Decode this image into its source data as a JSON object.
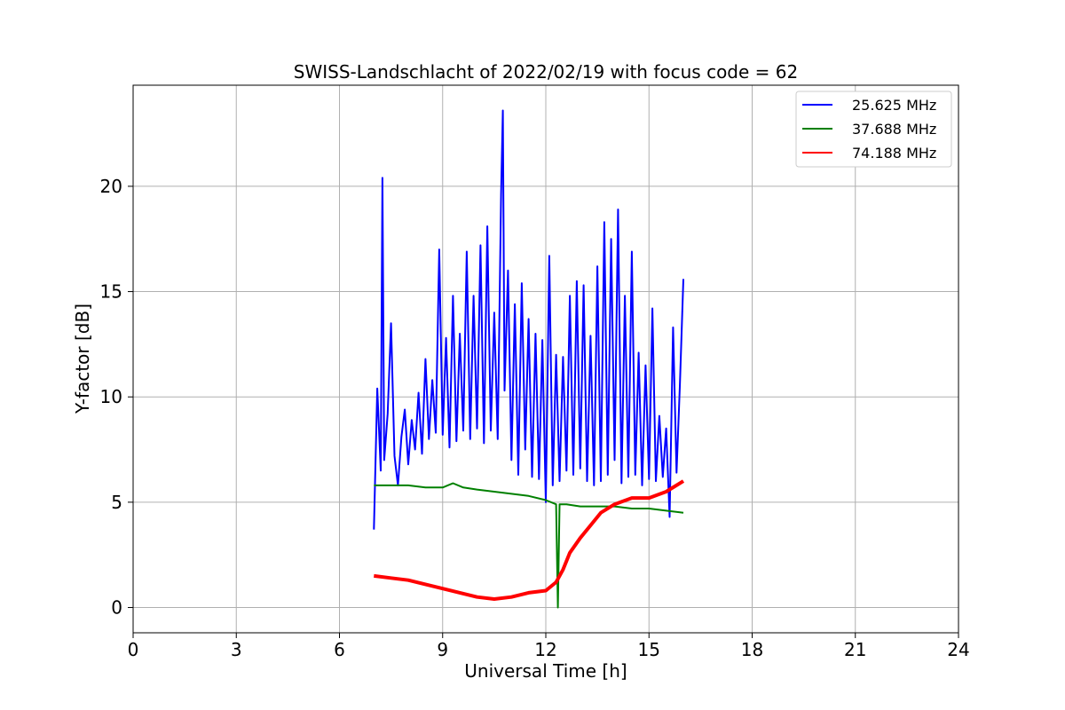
{
  "chart_data": {
    "type": "line",
    "title": "SWISS-Landschlacht of 2022/02/19 with focus code = 62",
    "xlabel": "Universal Time [h]",
    "ylabel": "Y-factor [dB]",
    "xlim": [
      0,
      24
    ],
    "ylim": [
      -1.2,
      24.8
    ],
    "xticks": [
      "0",
      "3",
      "6",
      "9",
      "12",
      "15",
      "18",
      "21",
      "24"
    ],
    "yticks": [
      "0",
      "5",
      "10",
      "15",
      "20"
    ],
    "grid": true,
    "legend_position": "top-right",
    "series": [
      {
        "name": "25.625 MHz",
        "color": "#0000ff",
        "x": [
          7.0,
          7.1,
          7.2,
          7.25,
          7.3,
          7.4,
          7.5,
          7.6,
          7.7,
          7.8,
          7.9,
          8.0,
          8.1,
          8.2,
          8.3,
          8.4,
          8.5,
          8.6,
          8.7,
          8.8,
          8.9,
          9.0,
          9.1,
          9.2,
          9.3,
          9.4,
          9.5,
          9.6,
          9.7,
          9.8,
          9.9,
          10.0,
          10.1,
          10.2,
          10.3,
          10.4,
          10.5,
          10.6,
          10.7,
          10.75,
          10.8,
          10.9,
          11.0,
          11.1,
          11.2,
          11.3,
          11.4,
          11.5,
          11.6,
          11.7,
          11.8,
          11.9,
          12.0,
          12.1,
          12.2,
          12.3,
          12.4,
          12.5,
          12.6,
          12.7,
          12.8,
          12.9,
          13.0,
          13.1,
          13.2,
          13.3,
          13.4,
          13.5,
          13.6,
          13.7,
          13.8,
          13.9,
          14.0,
          14.1,
          14.2,
          14.3,
          14.4,
          14.5,
          14.6,
          14.7,
          14.8,
          14.9,
          15.0,
          15.1,
          15.2,
          15.3,
          15.4,
          15.5,
          15.6,
          15.7,
          15.8,
          15.9,
          16.0
        ],
        "y": [
          3.7,
          10.4,
          6.5,
          20.4,
          7.0,
          9.2,
          13.5,
          7.2,
          5.8,
          8.1,
          9.4,
          6.8,
          8.9,
          7.5,
          10.2,
          7.3,
          11.8,
          8.0,
          10.8,
          8.3,
          17.0,
          8.2,
          12.8,
          7.6,
          14.8,
          7.9,
          13.0,
          8.4,
          16.9,
          8.0,
          14.8,
          8.5,
          17.2,
          7.8,
          18.1,
          8.4,
          14.0,
          8.0,
          19.6,
          23.6,
          10.3,
          16.0,
          7.0,
          14.4,
          6.3,
          15.4,
          7.5,
          13.7,
          6.2,
          13.0,
          6.1,
          12.7,
          5.0,
          16.7,
          5.8,
          12.0,
          6.0,
          11.9,
          6.5,
          14.8,
          6.3,
          15.5,
          6.6,
          15.3,
          6.0,
          12.9,
          5.8,
          16.2,
          6.0,
          18.3,
          6.3,
          17.5,
          7.0,
          18.9,
          5.9,
          14.8,
          6.2,
          16.9,
          6.3,
          12.1,
          5.8,
          11.5,
          6.1,
          14.2,
          6.0,
          9.1,
          6.2,
          8.5,
          4.3,
          13.3,
          6.4,
          10.6,
          15.6
        ]
      },
      {
        "name": "37.688 MHz",
        "color": "#008000",
        "x": [
          7.0,
          7.5,
          8.0,
          8.5,
          9.0,
          9.3,
          9.6,
          10.0,
          10.5,
          11.0,
          11.5,
          12.0,
          12.3,
          12.35,
          12.4,
          12.6,
          13.0,
          13.5,
          14.0,
          14.5,
          15.0,
          15.5,
          16.0
        ],
        "y": [
          5.8,
          5.8,
          5.8,
          5.7,
          5.7,
          5.9,
          5.7,
          5.6,
          5.5,
          5.4,
          5.3,
          5.1,
          4.9,
          0.0,
          4.9,
          4.9,
          4.8,
          4.8,
          4.8,
          4.7,
          4.7,
          4.6,
          4.5
        ]
      },
      {
        "name": "74.188 MHz",
        "color": "#ff0000",
        "x": [
          7.0,
          7.5,
          8.0,
          8.5,
          9.0,
          9.5,
          10.0,
          10.5,
          11.0,
          11.5,
          12.0,
          12.3,
          12.5,
          12.7,
          13.0,
          13.3,
          13.6,
          14.0,
          14.5,
          15.0,
          15.5,
          16.0
        ],
        "y": [
          1.5,
          1.4,
          1.3,
          1.1,
          0.9,
          0.7,
          0.5,
          0.4,
          0.5,
          0.7,
          0.8,
          1.2,
          1.8,
          2.6,
          3.3,
          3.9,
          4.5,
          4.9,
          5.2,
          5.2,
          5.5,
          6.0
        ]
      }
    ]
  }
}
